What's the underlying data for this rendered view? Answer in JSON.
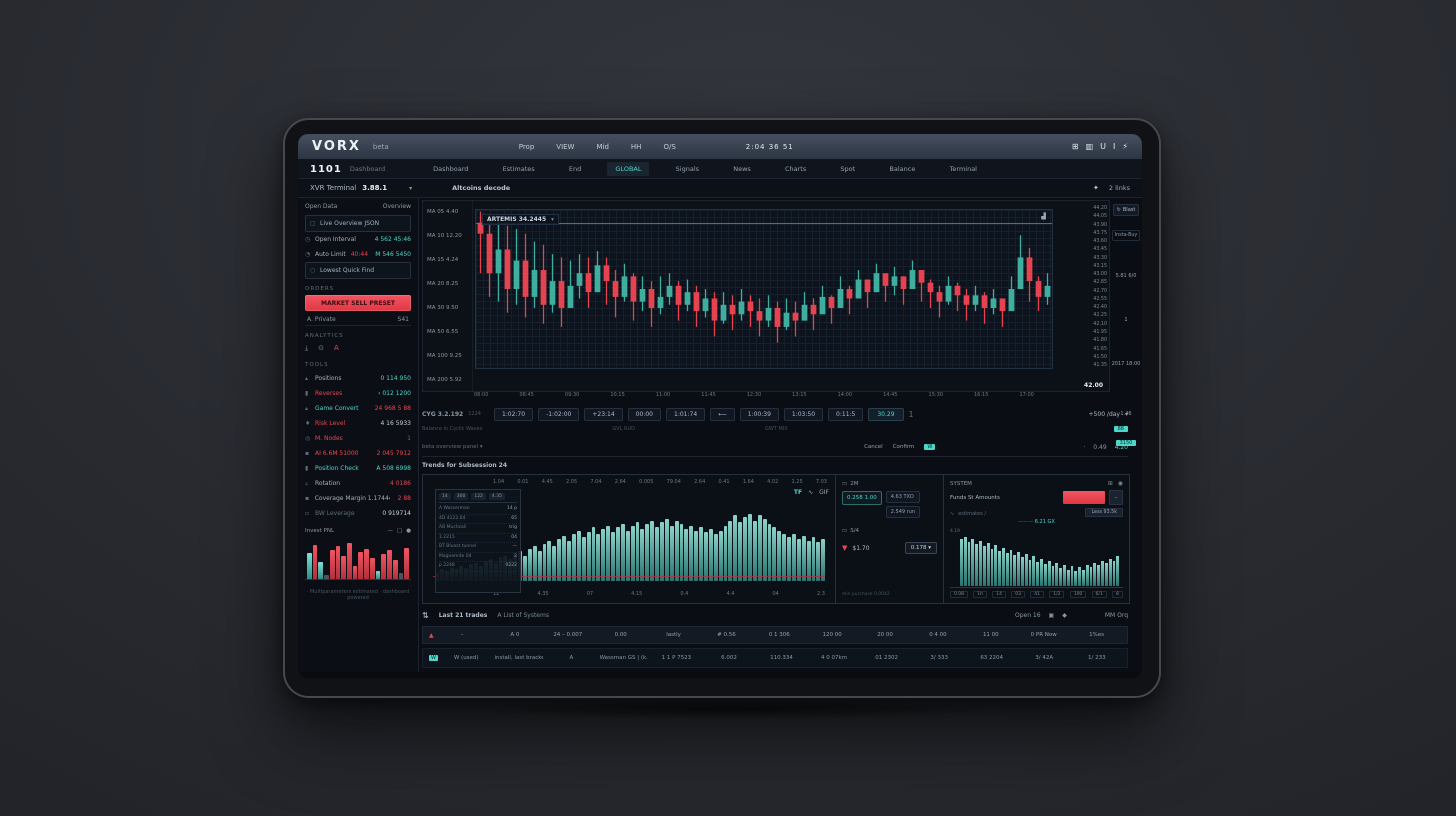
{
  "colors": {
    "teal": "#4fd6c9",
    "red": "#e84653",
    "up": "#3fae9f",
    "down": "#e4434f",
    "panel": "#0e141c"
  },
  "topbar": {
    "logo": "VORX",
    "logo_sub": "beta",
    "menu": [
      "Prop",
      "VIEW",
      "Mid",
      "HH",
      "O/S"
    ],
    "clock": "2:04 36 51",
    "icon_glyphs": [
      "⊞",
      "▥",
      "U",
      "I",
      "⚡"
    ]
  },
  "nav": {
    "badge": "1101",
    "section": "Dashboard",
    "tabs": [
      {
        "label": "Dashboard"
      },
      {
        "label": "Estimates"
      },
      {
        "label": "End"
      },
      {
        "label": "GLOBAL",
        "active_class": "active"
      },
      {
        "label": "Signals"
      },
      {
        "label": "News"
      },
      {
        "label": "Charts"
      },
      {
        "label": "Spot"
      },
      {
        "label": "Balance"
      },
      {
        "label": "Terminal"
      }
    ]
  },
  "crumbs": {
    "pair": "XVR Terminal",
    "version": "3.88.1",
    "caret": "▾",
    "context": "Altcoins decode",
    "star": "✦",
    "links": "2 links"
  },
  "sidebar": {
    "tab_left": "Open Data",
    "tab_right": "Overview",
    "rows_top": [
      {
        "ic": "▢",
        "label": "Live Overview JSON",
        "box": "boxed"
      },
      {
        "ic": "◷",
        "label": "Open Interval",
        "value": "4 562 45:46",
        "vc": "teal"
      },
      {
        "ic": "◔",
        "label": "Auto Limit",
        "mid": "40:44",
        "mc": "red",
        "value": "M 546 5450",
        "vc": "teal"
      },
      {
        "ic": "○",
        "label": "Lowest Quick Find",
        "box": "boxed"
      }
    ],
    "orders_title": "ORDERS",
    "sell_button": "MARKET SELL PRESET",
    "sell_row": {
      "label": "A. Private",
      "value": "S41"
    },
    "analytics_title": "ANALYTICS",
    "icons": [
      "⤓",
      "⊙",
      "A"
    ],
    "tools_title": "TOOLS",
    "rows_tools": [
      {
        "ic": "▴",
        "label": "Positions",
        "value": "0 114 950",
        "vc": "teal"
      },
      {
        "ic": "▮",
        "label": "Reverses",
        "lc": "red",
        "value": "› 012 1200",
        "vc": "teal"
      },
      {
        "ic": "▴",
        "label": "Game Convert",
        "lc": "teal",
        "value": "24 968 5 88",
        "vc": "red"
      },
      {
        "ic": "♦",
        "label": "Risk Level",
        "lc": "red",
        "value": "4 16 5933"
      },
      {
        "ic": "◎",
        "label": "M. Nodes",
        "lc": "red",
        "value": "1",
        "vc": "muted"
      },
      {
        "ic": "▪",
        "label": "AI 6.6M 51000",
        "lc": "red",
        "value": "2 045 7912",
        "vc": "red"
      },
      {
        "ic": "▮",
        "label": "Position Check",
        "lc": "teal",
        "value": "A 508 6998",
        "vc": "teal"
      },
      {
        "ic": "▵",
        "label": "Rotation",
        "value": "4 0186",
        "vc": "red"
      },
      {
        "ic": "▪",
        "label": "Coverage Margin 1.17444",
        "value": "2 88",
        "vc": "red"
      },
      {
        "ic": "▫",
        "label": "BW Leverage",
        "lc": "muted",
        "value": "0 919714"
      }
    ],
    "chart_title": "Invest PNL",
    "chart_icons": [
      "—",
      "□",
      "●"
    ],
    "footnote": "· Multiparameters estimated · dashboard powered"
  },
  "chart": {
    "ma_rows": [
      "MA 05 4.40",
      "MA 10 12.20",
      "MA 15 4.24",
      "MA 20 8.25",
      "MA 30 9.50",
      "MA 50 6.55",
      "MA 100 9.25",
      "MA 200 5.92"
    ],
    "overlay_icons": [
      "▾",
      "▟"
    ],
    "y_footer": "42.00",
    "x_ticks": [
      "08:00",
      "08:45",
      "09:30",
      "10:15",
      "11:00",
      "11:45",
      "12:30",
      "13:15",
      "14:00",
      "14:45",
      "15:30",
      "16:15",
      "17:00"
    ],
    "y_ticks": [
      "44.20",
      "44.05",
      "43.90",
      "43.75",
      "43.60",
      "43.45",
      "43.30",
      "43.15",
      "43.00",
      "42.85",
      "42.70",
      "42.55",
      "42.40",
      "42.25",
      "42.10",
      "41.95",
      "41.80",
      "41.65",
      "41.50",
      "41.35"
    ]
  },
  "toolbar": {
    "version": "CYG 3.2.192",
    "version_sub": "1224",
    "buttons": [
      "1:02:70",
      "-1:02:00",
      "+23:14",
      "00:00",
      "1:01:74",
      "⟵",
      "1:00:39",
      "1:03:50",
      "0:11:5"
    ],
    "select": "30.29",
    "sep": "1",
    "range": "+500 /day",
    "caret": "▾",
    "captions": [
      "Balance in Cyclic Waves",
      "GVL RUD",
      "GWT MIX"
    ],
    "badge": "88"
  },
  "divider_row": {
    "left": "beta overview panel ▾",
    "cancel": "Cancel",
    "confirm": "Confirm",
    "chip": "W",
    "dot": "·",
    "v1": "0.49",
    "v2": "4.20"
  },
  "middle": {
    "title": "Trends for Subsession 24",
    "panelA": {
      "top_ticks": [
        "1.04",
        "0.01",
        "4.45",
        "2.05",
        "7.04",
        "2.64",
        "0.005",
        "79.04",
        "2.64",
        "0.41",
        "1.64",
        "4.02",
        "1.25",
        "7.03"
      ],
      "icon1": "TF",
      "icon2": "∿",
      "icon3": "GIF",
      "overlay": {
        "tabs": [
          "14",
          "300",
          "122",
          "4.35"
        ],
        "lines": [
          {
            "l": "A Wasserman",
            "v": "14 p"
          },
          {
            "l": "4D 4122.04",
            "v": "65"
          },
          {
            "l": "AB Muchzali",
            "v": "trig"
          },
          {
            "l": "1.2215",
            "v": "04"
          },
          {
            "l": "BT Bluest tunnel",
            "v": "—"
          },
          {
            "l": "Magnemite 04",
            "v": "2"
          },
          {
            "l": "p 2248",
            "v": "0222"
          }
        ]
      },
      "bottom_ticks": [
        "12",
        "4.35",
        "07",
        "4.15",
        "0.4",
        "4.4",
        "04",
        "2.3"
      ]
    },
    "panelB": {
      "h1_icon": "▭",
      "h1": "2M",
      "price_box": "0.258 1.00",
      "btn1": "4.63 TXD",
      "btn2": "2.549 run",
      "h2_icon": "▭",
      "h2": "S/4",
      "funnel": "▼",
      "amount": "$1.70",
      "qty_btn": "0.178 ▾",
      "fineprint": "min purchase 0.0042"
    },
    "panelC": {
      "title": "SYSTEM",
      "icon1": "⊞",
      "icon2": "◉",
      "row_label": "Funds St Amounts",
      "mini_btn": "–",
      "less_btn": "Less 93.5k",
      "sub_icon": "∿",
      "sub": "estimates /",
      "cap_pre": "———",
      "cap": "6.21 GX",
      "axis_left": "4.19",
      "x_chips": [
        "0.08",
        "1h",
        "14",
        "03",
        "41",
        "1/2",
        "100",
        "6/1",
        "8"
      ]
    }
  },
  "bottom": {
    "tool_icon": "⇅",
    "tab1": "Last 21 trades",
    "tab2": "A List of Systems",
    "right1": "Open 16",
    "tg1": "▣",
    "tg2": "◆",
    "right2": "MM Orq",
    "header": [
      "–",
      "A 0",
      "24 – 0.007",
      "0.00",
      "lastly",
      "# 0.56",
      "0 1 306",
      "120 00",
      "20 00",
      "0 4 00",
      "11 00",
      "0 PR Now",
      "1%es"
    ],
    "arrow": "▲",
    "row": [
      "W (used)",
      "install, last bracket",
      "A",
      "Wassman GS | (k.03",
      "1 1 P 7523",
      "6.002",
      "110.334",
      "4 0 07km",
      "01 2302",
      "3/ 333",
      "63 2204",
      "3/ 42A",
      "1/ 233"
    ],
    "chip": "W"
  },
  "rail": {
    "btn1_icon": "↻",
    "btn1": "Blast",
    "btn2": "Insta-Buy",
    "v1": "5.81 6/0",
    "v2": "1",
    "v3": "2017 18:00",
    "v4": "1.46",
    "badge": "3150"
  },
  "chart_data": [
    {
      "id": "main-candles",
      "type": "candlestick",
      "title": "ARTEMIS 34.2445",
      "ylim": [
        0,
        100
      ],
      "price_line": 92,
      "up_color": "#3fae9f",
      "down_color": "#e4434f",
      "opens": [
        92,
        85,
        60,
        75,
        50,
        68,
        45,
        62,
        40,
        55,
        38,
        52,
        60,
        48,
        65,
        55,
        45,
        58,
        42,
        50,
        38,
        45,
        52,
        40,
        48,
        36,
        44,
        30,
        40,
        34,
        42,
        36,
        30,
        38,
        26,
        35,
        30,
        40,
        34,
        45,
        38,
        50,
        44,
        56,
        48,
        60,
        52,
        58,
        50,
        62,
        54,
        48,
        42,
        52,
        46,
        40,
        46,
        38,
        44,
        36,
        50,
        70,
        55,
        45
      ],
      "closes": [
        85,
        60,
        75,
        50,
        68,
        45,
        62,
        40,
        55,
        38,
        52,
        60,
        48,
        65,
        55,
        45,
        58,
        42,
        50,
        38,
        45,
        52,
        40,
        48,
        36,
        44,
        30,
        40,
        34,
        42,
        36,
        30,
        38,
        26,
        35,
        30,
        40,
        34,
        45,
        38,
        50,
        44,
        56,
        48,
        60,
        52,
        58,
        50,
        62,
        54,
        48,
        42,
        52,
        46,
        40,
        46,
        38,
        44,
        36,
        50,
        70,
        55,
        45,
        52
      ],
      "highs": [
        99,
        97,
        93,
        90,
        88,
        85,
        80,
        78,
        72,
        70,
        68,
        72,
        70,
        74,
        70,
        62,
        66,
        60,
        58,
        55,
        58,
        60,
        55,
        56,
        52,
        50,
        48,
        48,
        46,
        50,
        46,
        44,
        46,
        42,
        44,
        42,
        48,
        44,
        52,
        46,
        58,
        52,
        62,
        56,
        66,
        60,
        64,
        58,
        68,
        62,
        56,
        52,
        58,
        54,
        50,
        52,
        48,
        50,
        44,
        58,
        84,
        76,
        58,
        60
      ],
      "lows": [
        60,
        45,
        42,
        35,
        40,
        32,
        38,
        28,
        35,
        26,
        40,
        44,
        38,
        48,
        40,
        32,
        42,
        30,
        36,
        26,
        34,
        40,
        30,
        36,
        26,
        32,
        20,
        28,
        24,
        30,
        26,
        20,
        26,
        16,
        24,
        20,
        30,
        24,
        34,
        28,
        40,
        34,
        44,
        38,
        48,
        42,
        46,
        40,
        50,
        42,
        38,
        32,
        40,
        36,
        30,
        36,
        28,
        34,
        26,
        38,
        50,
        42,
        36,
        40
      ]
    },
    {
      "id": "depth-bars",
      "type": "bar",
      "values": [
        10,
        14,
        12,
        16,
        14,
        18,
        16,
        20,
        22,
        18,
        24,
        26,
        22,
        28,
        30,
        26,
        32,
        36,
        30,
        38,
        42,
        36,
        44,
        48,
        42,
        50,
        54,
        48,
        56,
        60,
        52,
        58,
        64,
        56,
        62,
        66,
        58,
        64,
        68,
        60,
        66,
        70,
        62,
        68,
        72,
        64,
        70,
        74,
        66,
        72,
        68,
        62,
        66,
        60,
        64,
        58,
        62,
        56,
        60,
        66,
        72,
        78,
        70,
        76,
        80,
        72,
        78,
        74,
        68,
        64,
        60,
        56,
        52,
        56,
        50,
        54,
        48,
        52,
        46,
        50
      ]
    },
    {
      "id": "side-bars",
      "type": "bar",
      "values": [
        85,
        90,
        80,
        86,
        76,
        82,
        72,
        78,
        68,
        74,
        64,
        70,
        60,
        66,
        56,
        62,
        52,
        58,
        48,
        54,
        44,
        50,
        40,
        46,
        36,
        42,
        32,
        38,
        30,
        36,
        28,
        34,
        30,
        38,
        34,
        42,
        38,
        46,
        42,
        50,
        46,
        54
      ]
    },
    {
      "id": "mini-bars",
      "type": "bar",
      "values": [
        62,
        80,
        40,
        10,
        70,
        78,
        55,
        85,
        30,
        65,
        72,
        50,
        20,
        60,
        68,
        45,
        15,
        75
      ],
      "colors": [
        "teal",
        "red",
        "teal",
        "muted",
        "red",
        "red",
        "red",
        "red",
        "red",
        "red",
        "red",
        "red",
        "teal",
        "red",
        "red",
        "red",
        "muted",
        "red"
      ]
    }
  ]
}
